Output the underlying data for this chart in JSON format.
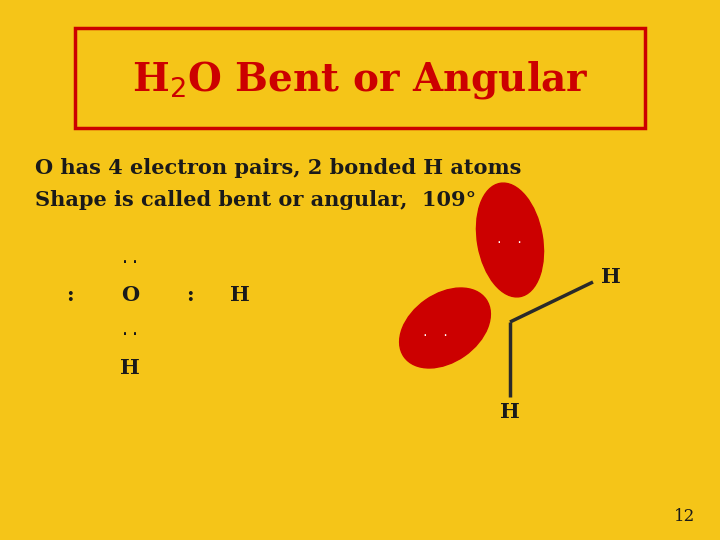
{
  "bg_color": "#F5C518",
  "title_text_parts": [
    "H",
    "2",
    "O Bent or Angular"
  ],
  "title_color": "#CC0000",
  "title_box_edge_color": "#CC0000",
  "title_box_facecolor": "#F5C518",
  "text_color": "#1a1a1a",
  "line1": "O has 4 electron pairs, 2 bonded H atoms",
  "line2": "Shape is called bent or angular,  109°",
  "molecule_O_color": "#CC0000",
  "page_number": "12"
}
